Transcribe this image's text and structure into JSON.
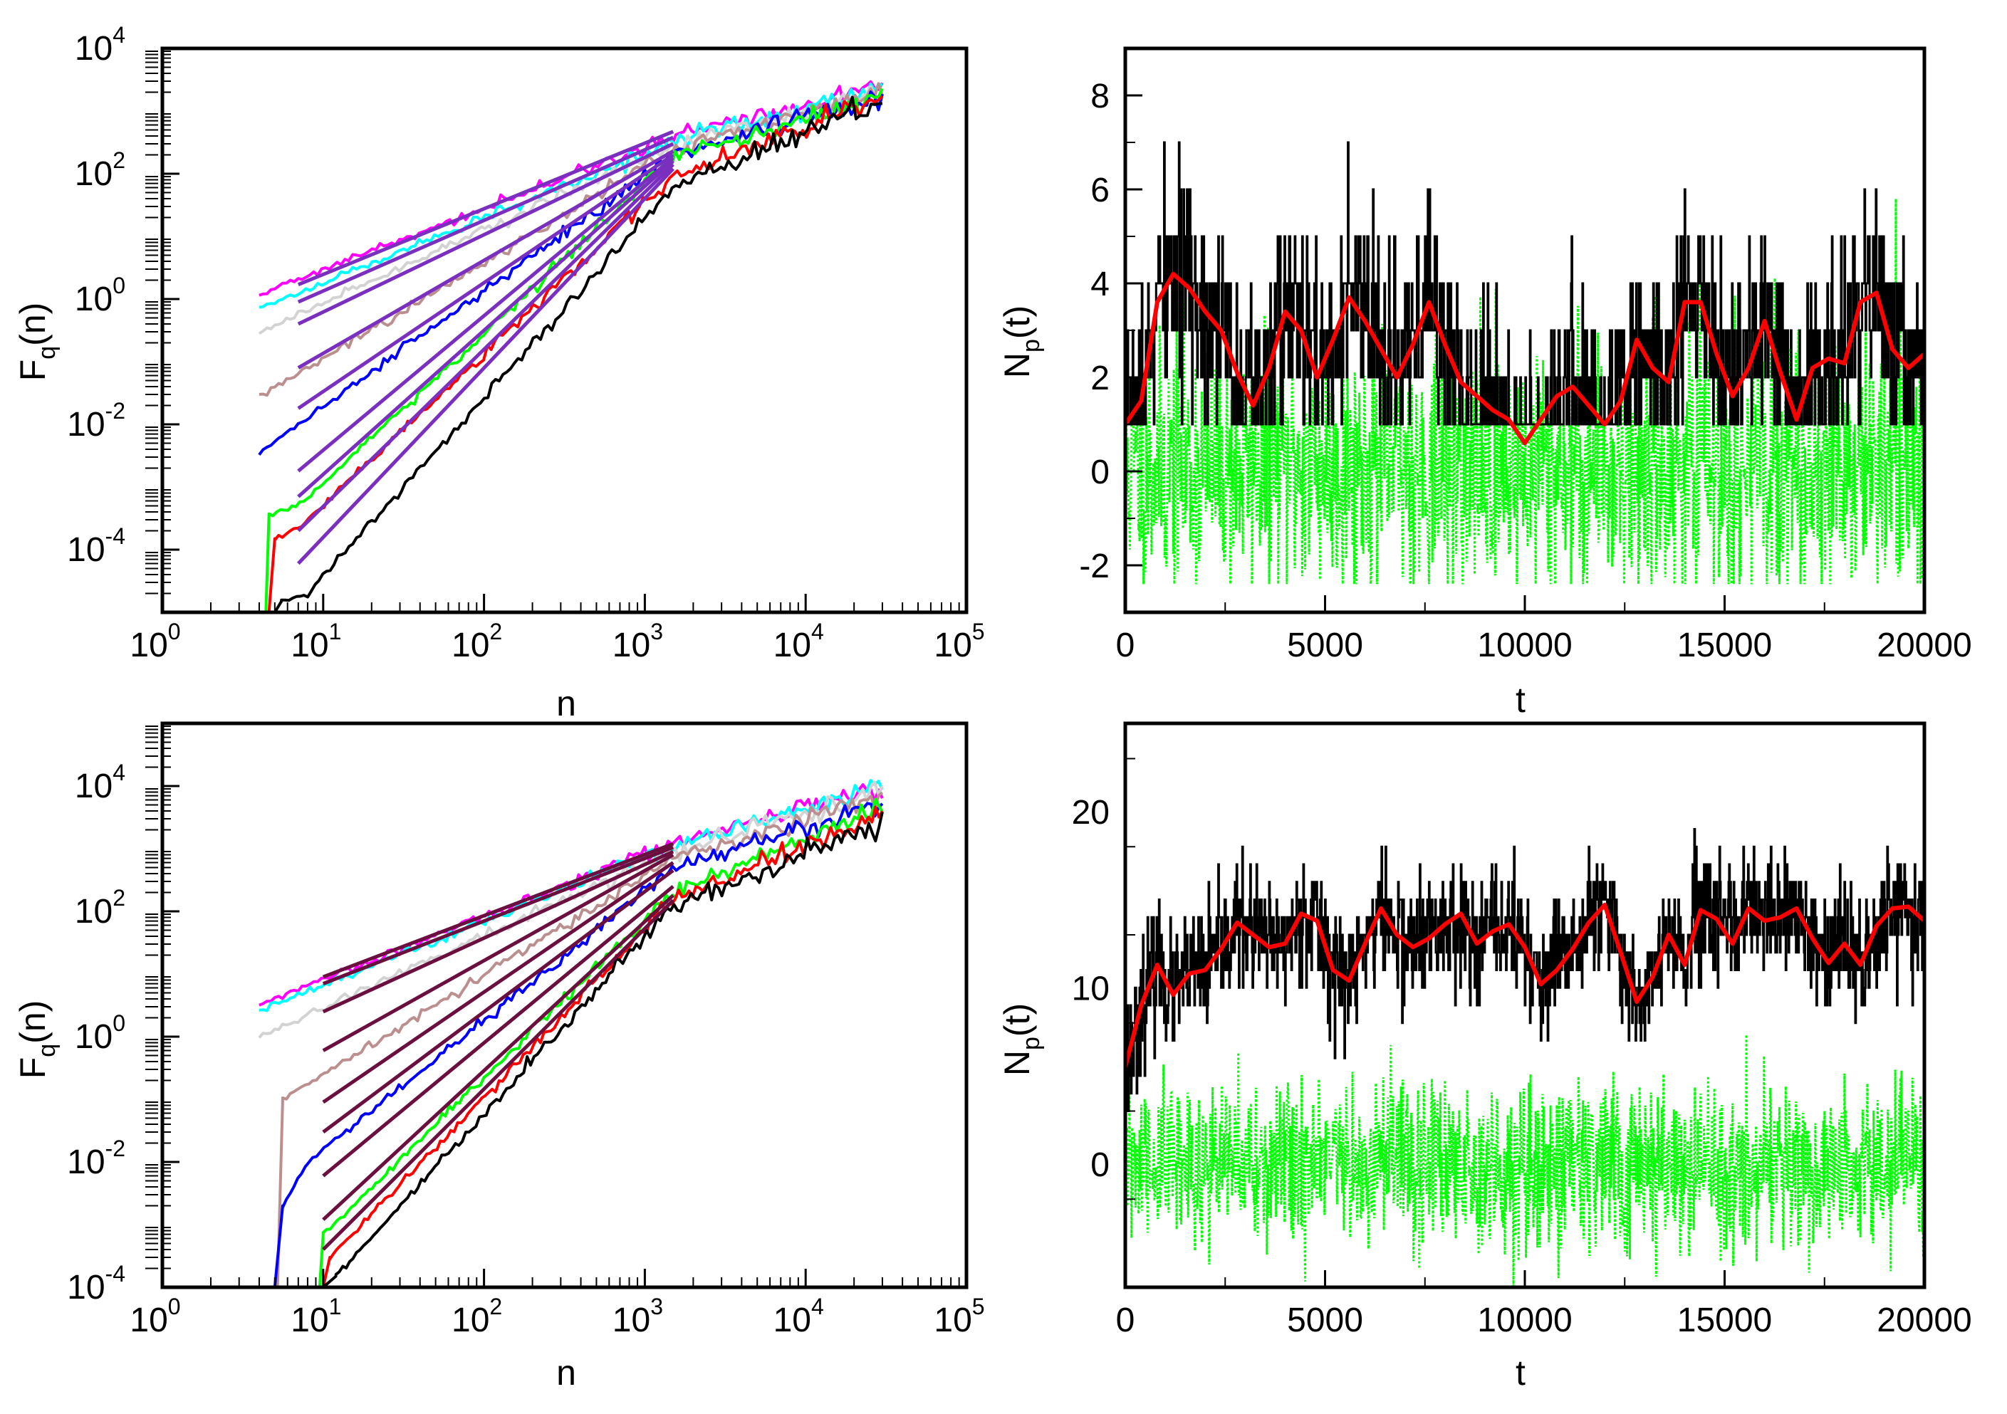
{
  "chart_data": [
    {
      "id": "tl",
      "type": "line",
      "xscale": "log",
      "yscale": "log",
      "xlabel": "n",
      "ylabel": "F",
      "ylabel_sub": "q",
      "ylabel_suffix": "(n)",
      "xlim": [
        1,
        100000
      ],
      "ylim": [
        1e-05,
        10000
      ],
      "xticks": [
        {
          "value": 1,
          "base": "10",
          "exp": "0"
        },
        {
          "value": 10,
          "base": "10",
          "exp": "1"
        },
        {
          "value": 100,
          "base": "10",
          "exp": "2"
        },
        {
          "value": 1000,
          "base": "10",
          "exp": "3"
        },
        {
          "value": 10000,
          "base": "10",
          "exp": "4"
        },
        {
          "value": 100000,
          "base": "10",
          "exp": "5"
        }
      ],
      "yticks": [
        {
          "value": 0.0001,
          "base": "10",
          "exp": "-4"
        },
        {
          "value": 0.01,
          "base": "10",
          "exp": "-2"
        },
        {
          "value": 1,
          "base": "10",
          "exp": "0"
        },
        {
          "value": 100,
          "base": "10",
          "exp": "2"
        },
        {
          "value": 10000,
          "base": "10",
          "exp": "4"
        }
      ],
      "series": [
        {
          "color": "#ff00ff",
          "q": 5,
          "mid": 1.25,
          "start": 4,
          "end": 30000,
          "p": [
            4,
            1.2,
            1500,
            400,
            30000,
            2500
          ],
          "bump": 1.4
        },
        {
          "color": "#00ffff",
          "q": 4,
          "mid": 1.25,
          "start": 4,
          "end": 30000,
          "p": [
            4,
            0.7,
            1500,
            330,
            30000,
            2200
          ],
          "bump": 1.3
        },
        {
          "color": "#d3d3d3",
          "q": 3,
          "mid": 1.25,
          "start": 4,
          "end": 30000,
          "p": [
            4,
            0.3,
            1500,
            280,
            30000,
            2000
          ],
          "bump": 1.2
        },
        {
          "color": "#bc8f8f",
          "q": 2,
          "mid": 1.25,
          "start": 4,
          "end": 30000,
          "p": [
            4,
            0.028,
            1500,
            240,
            30000,
            1900
          ],
          "bump": 1.2
        },
        {
          "color": "#0000ff",
          "q": 1,
          "mid": 1.25,
          "start": 4,
          "end": 30000,
          "p": [
            4,
            0.0035,
            1500,
            200,
            30000,
            1800
          ],
          "bump": 1.2
        },
        {
          "color": "#00ff00",
          "q": 0,
          "mid": 1.35,
          "start": 4.4,
          "end": 30000,
          "drop": [
            4.4,
            1e-05,
            4.6,
            0.00035
          ],
          "p": [
            4.6,
            0.00035,
            7,
            0.0005,
            1500,
            180,
            30000,
            1700
          ],
          "bump": 1.2
        },
        {
          "color": "#ff0000",
          "q": -1,
          "mid": 1.35,
          "start": 4.6,
          "end": 30000,
          "drop": [
            4.6,
            1e-05,
            5,
            0.00015
          ],
          "p": [
            5,
            0.00015,
            7,
            0.00022,
            1500,
            90,
            30000,
            1600
          ],
          "bump": 1.2
        },
        {
          "color": "#000000",
          "q": -2,
          "mid": 1.45,
          "start": 5,
          "end": 30000,
          "drop": [
            5,
            1e-05,
            5.5,
            1.5e-05
          ],
          "p": [
            5.5,
            1.5e-05,
            8,
            2e-05,
            1500,
            60,
            30000,
            1500
          ],
          "bump": 1.2
        }
      ],
      "fits": [
        {
          "color": "#7b2fbf",
          "from": [
            7,
            1.7
          ],
          "to": [
            1500,
            470
          ]
        },
        {
          "color": "#7b2fbf",
          "from": [
            7,
            0.9
          ],
          "to": [
            1500,
            380
          ]
        },
        {
          "color": "#7b2fbf",
          "from": [
            7,
            0.4
          ],
          "to": [
            1500,
            300
          ]
        },
        {
          "color": "#7b2fbf",
          "from": [
            7,
            0.08
          ],
          "to": [
            1500,
            230
          ]
        },
        {
          "color": "#7b2fbf",
          "from": [
            7,
            0.018
          ],
          "to": [
            1500,
            200
          ]
        },
        {
          "color": "#7b2fbf",
          "from": [
            7,
            0.0018
          ],
          "to": [
            1500,
            180
          ]
        },
        {
          "color": "#7b2fbf",
          "from": [
            7,
            0.0007
          ],
          "to": [
            1500,
            160
          ]
        },
        {
          "color": "#7b2fbf",
          "from": [
            7,
            0.0002
          ],
          "to": [
            1500,
            140
          ]
        },
        {
          "color": "#7b2fbf",
          "from": [
            7,
            6e-05
          ],
          "to": [
            1500,
            120
          ]
        }
      ]
    },
    {
      "id": "tr",
      "type": "line",
      "xscale": "linear",
      "yscale": "linear",
      "xlabel": "t",
      "ylabel": "N",
      "ylabel_sub": "p",
      "ylabel_suffix": "(t)",
      "xlim": [
        0,
        20000
      ],
      "ylim": [
        -3,
        9
      ],
      "xticks": [
        0,
        5000,
        10000,
        15000,
        20000
      ],
      "yticks": [
        -2,
        0,
        2,
        4,
        6,
        8
      ],
      "series": [
        {
          "name": "",
          "color": "#000000",
          "style": "solid",
          "kind": "counts",
          "mean": 2.6,
          "amp": 1.5,
          "noise": 1.4,
          "seed": 7,
          "min": 1,
          "max": 8
        },
        {
          "name": "",
          "color": "#00ff00",
          "style": "dotted",
          "kind": "noise",
          "mean": 0.1,
          "amp": 1.0,
          "noise": 1.3,
          "seed": 11,
          "min": -2.4,
          "max": 5.8
        },
        {
          "name": "",
          "color": "#ff0000",
          "style": "solid",
          "kind": "smooth",
          "x": [
            0,
            400,
            800,
            1200,
            1600,
            2000,
            2400,
            2800,
            3200,
            3600,
            4000,
            4400,
            4800,
            5200,
            5600,
            6000,
            6400,
            6800,
            7200,
            7600,
            8000,
            8400,
            8800,
            9200,
            9600,
            10000,
            10400,
            10800,
            11200,
            11600,
            12000,
            12400,
            12800,
            13200,
            13600,
            14000,
            14400,
            14800,
            15200,
            15600,
            16000,
            16400,
            16800,
            17200,
            17600,
            18000,
            18400,
            18800,
            19200,
            19600,
            20000
          ],
          "y": [
            1.0,
            1.5,
            3.6,
            4.2,
            3.9,
            3.4,
            3.0,
            2.1,
            1.4,
            2.2,
            3.4,
            3.0,
            2.0,
            2.8,
            3.7,
            3.2,
            2.6,
            2.0,
            2.7,
            3.6,
            2.7,
            1.9,
            1.6,
            1.3,
            1.1,
            0.6,
            1.1,
            1.6,
            1.8,
            1.4,
            1.0,
            1.5,
            2.8,
            2.2,
            1.9,
            3.6,
            3.6,
            2.5,
            1.6,
            2.2,
            3.2,
            2.1,
            1.1,
            2.2,
            2.4,
            2.3,
            3.6,
            3.8,
            2.6,
            2.2,
            2.5
          ]
        }
      ]
    },
    {
      "id": "bl",
      "type": "line",
      "xscale": "log",
      "yscale": "log",
      "xlabel": "n",
      "ylabel": "F",
      "ylabel_sub": "q",
      "ylabel_suffix": "(n)",
      "xlim": [
        1,
        100000
      ],
      "ylim": [
        0.0001,
        100000
      ],
      "xticks": [
        {
          "value": 1,
          "base": "10",
          "exp": "0"
        },
        {
          "value": 10,
          "base": "10",
          "exp": "1"
        },
        {
          "value": 100,
          "base": "10",
          "exp": "2"
        },
        {
          "value": 1000,
          "base": "10",
          "exp": "3"
        },
        {
          "value": 10000,
          "base": "10",
          "exp": "4"
        },
        {
          "value": 100000,
          "base": "10",
          "exp": "5"
        }
      ],
      "yticks": [
        {
          "value": 0.0001,
          "base": "10",
          "exp": "-4"
        },
        {
          "value": 0.01,
          "base": "10",
          "exp": "-2"
        },
        {
          "value": 1,
          "base": "10",
          "exp": "0"
        },
        {
          "value": 100,
          "base": "10",
          "exp": "2"
        },
        {
          "value": 10000,
          "base": "10",
          "exp": "4"
        }
      ],
      "series": [
        {
          "color": "#ff00ff",
          "q": 5,
          "mid": 1.25,
          "start": 4,
          "end": 30000,
          "p": [
            4,
            3.2,
            1500,
            1300,
            30000,
            10000
          ],
          "bump": 1.2
        },
        {
          "color": "#00ffff",
          "q": 4,
          "mid": 1.25,
          "start": 4,
          "end": 30000,
          "p": [
            4,
            2.6,
            1500,
            1100,
            30000,
            9000
          ],
          "bump": 1.2
        },
        {
          "color": "#d3d3d3",
          "q": 3,
          "mid": 1.25,
          "start": 4,
          "end": 30000,
          "p": [
            4,
            1.0,
            1500,
            900,
            30000,
            8000
          ],
          "bump": 1.2
        },
        {
          "color": "#bc8f8f",
          "q": 2,
          "mid": 1.25,
          "start": 4,
          "end": 30000,
          "drop": [
            5.2,
            0.0001,
            5.6,
            0.1
          ],
          "p": [
            5.6,
            0.1,
            1500,
            700,
            30000,
            6500
          ],
          "bump": 1.2
        },
        {
          "color": "#0000ff",
          "q": 1,
          "mid": 1.25,
          "start": 5,
          "end": 30000,
          "drop": [
            5,
            0.0001,
            5.6,
            0.002
          ],
          "p": [
            5.6,
            0.002,
            8,
            0.01,
            1500,
            500,
            30000,
            5500
          ],
          "bump": 1.2
        },
        {
          "color": "#00ff00",
          "q": 0,
          "mid": 1.35,
          "start": 9.5,
          "end": 30000,
          "drop": [
            9.5,
            0.0001,
            10,
            0.0007
          ],
          "p": [
            10,
            0.0007,
            1500,
            200,
            30000,
            4500
          ],
          "bump": 1.2
        },
        {
          "color": "#ff0000",
          "q": -1,
          "mid": 1.35,
          "start": 10,
          "end": 30000,
          "drop": [
            10,
            0.0001,
            11,
            0.0003
          ],
          "p": [
            11,
            0.0003,
            1500,
            150,
            30000,
            3500
          ],
          "bump": 1.2
        },
        {
          "color": "#000000",
          "q": -2,
          "mid": 1.45,
          "start": 10,
          "end": 30000,
          "drop": [
            10,
            0.0001,
            12,
            0.00015
          ],
          "p": [
            12,
            0.00015,
            1500,
            120,
            30000,
            2500
          ],
          "bump": 1.2
        }
      ],
      "fits": [
        {
          "color": "#6b0f3f",
          "from": [
            10,
            9
          ],
          "to": [
            1500,
            1200
          ]
        },
        {
          "color": "#6b0f3f",
          "from": [
            10,
            7
          ],
          "to": [
            1500,
            1050
          ]
        },
        {
          "color": "#6b0f3f",
          "from": [
            10,
            2.5
          ],
          "to": [
            1500,
            900
          ]
        },
        {
          "color": "#6b0f3f",
          "from": [
            10,
            0.6
          ],
          "to": [
            1500,
            800
          ]
        },
        {
          "color": "#6b0f3f",
          "from": [
            10,
            0.09
          ],
          "to": [
            1500,
            600
          ]
        },
        {
          "color": "#6b0f3f",
          "from": [
            10,
            0.03
          ],
          "to": [
            1500,
            450
          ]
        },
        {
          "color": "#6b0f3f",
          "from": [
            10,
            0.006
          ],
          "to": [
            1500,
            250
          ]
        },
        {
          "color": "#6b0f3f",
          "from": [
            10,
            0.0012
          ],
          "to": [
            1500,
            180
          ]
        },
        {
          "color": "#6b0f3f",
          "from": [
            10,
            0.0004
          ],
          "to": [
            1500,
            150
          ]
        }
      ]
    },
    {
      "id": "br",
      "type": "line",
      "xscale": "linear",
      "yscale": "linear",
      "xlabel": "t",
      "ylabel": "N",
      "ylabel_sub": "p",
      "ylabel_suffix": "(t)",
      "xlim": [
        0,
        20000
      ],
      "ylim": [
        -7,
        25
      ],
      "xticks": [
        0,
        5000,
        10000,
        15000,
        20000
      ],
      "yticks": [
        0,
        10,
        20
      ],
      "series": [
        {
          "name": "",
          "color": "#000000",
          "style": "solid",
          "kind": "counts",
          "mean": 12.5,
          "amp": 1.6,
          "noise": 2.3,
          "seed": 23,
          "min": 3,
          "max": 22
        },
        {
          "name": "",
          "color": "#00ff00",
          "style": "dotted",
          "kind": "noise",
          "mean": 0.0,
          "amp": 0.8,
          "noise": 2.3,
          "seed": 31,
          "min": -7,
          "max": 7.5
        },
        {
          "name": "",
          "color": "#ff0000",
          "style": "solid",
          "kind": "smooth",
          "x": [
            0,
            400,
            800,
            1200,
            1600,
            2000,
            2400,
            2800,
            3200,
            3600,
            4000,
            4400,
            4800,
            5200,
            5600,
            6000,
            6400,
            6800,
            7200,
            7600,
            8000,
            8400,
            8800,
            9200,
            9600,
            10000,
            10400,
            10800,
            11200,
            11600,
            12000,
            12400,
            12800,
            13200,
            13600,
            14000,
            14400,
            14800,
            15200,
            15600,
            16000,
            16400,
            16800,
            17200,
            17600,
            18000,
            18400,
            18800,
            19200,
            19600,
            20000
          ],
          "y": [
            5.5,
            9.0,
            11.3,
            9.6,
            10.8,
            11.0,
            12.2,
            13.7,
            13.0,
            12.3,
            12.5,
            14.2,
            13.8,
            11.0,
            10.4,
            12.5,
            14.5,
            13.0,
            12.3,
            12.8,
            13.6,
            14.2,
            12.5,
            13.2,
            13.6,
            12.3,
            10.2,
            11.0,
            12.2,
            13.7,
            14.7,
            12.0,
            9.2,
            10.6,
            13.0,
            11.3,
            14.4,
            13.9,
            12.5,
            14.5,
            13.8,
            14.0,
            14.5,
            12.8,
            11.4,
            12.5,
            11.3,
            13.5,
            14.5,
            14.6,
            13.8
          ]
        }
      ]
    }
  ]
}
